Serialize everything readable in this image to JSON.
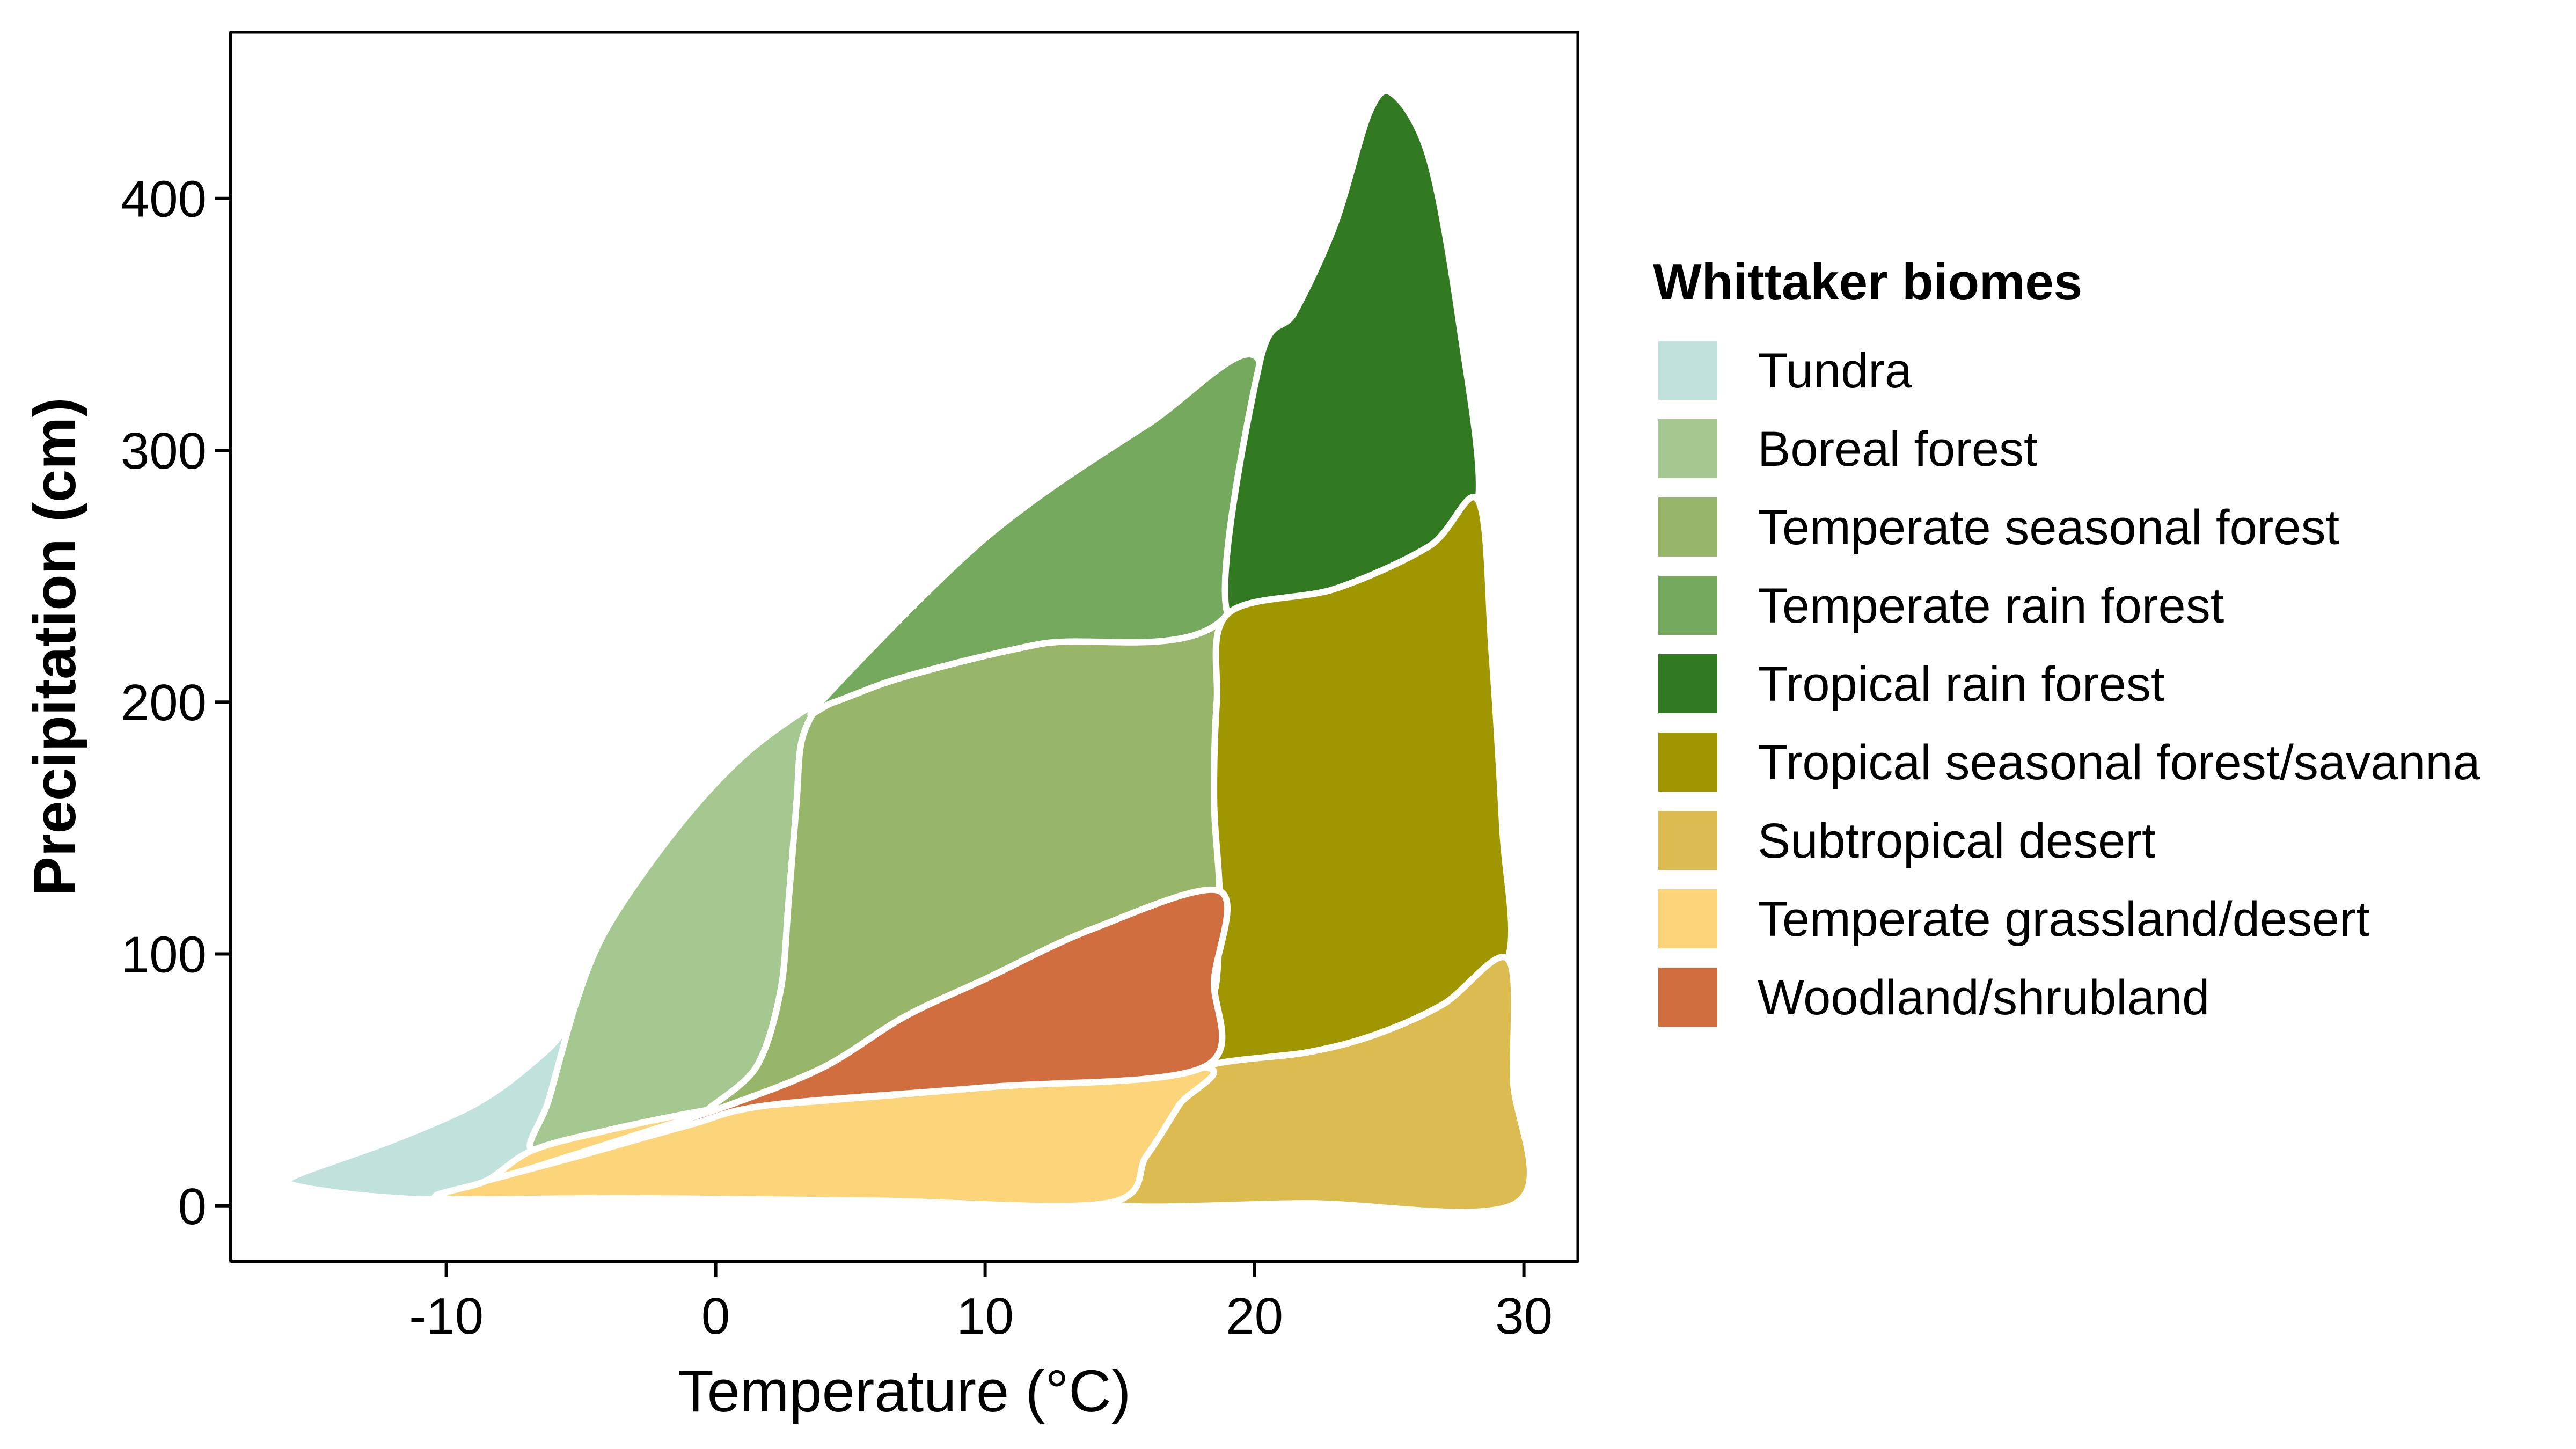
{
  "chart_data": {
    "type": "area",
    "title": "",
    "xlabel": "Temperature (°C)",
    "ylabel": "Precipitation (cm)",
    "xlim": [
      -18,
      32
    ],
    "ylim": [
      -22,
      466
    ],
    "x_ticks": [
      -10,
      0,
      10,
      20,
      30
    ],
    "x_tick_labels": [
      "-10",
      "0",
      "10",
      "20",
      "30"
    ],
    "y_ticks": [
      0,
      100,
      200,
      300,
      400
    ],
    "y_tick_labels": [
      "0",
      "100",
      "200",
      "300",
      "400"
    ],
    "grid": false,
    "legend": {
      "title": "Whittaker biomes",
      "position": "right"
    },
    "series": [
      {
        "name": "Tundra",
        "color": "#C1E1DD",
        "points": [
          [
            -15.6,
            12
          ],
          [
            -12,
            26
          ],
          [
            -9,
            40
          ],
          [
            -7,
            55
          ],
          [
            -5.5,
            72
          ],
          [
            -4.2,
            107
          ],
          [
            -5.2,
            80
          ],
          [
            -6.2,
            42
          ],
          [
            -6.8,
            22
          ],
          [
            -8.5,
            10
          ],
          [
            -10.2,
            3
          ],
          [
            -13,
            4
          ],
          [
            -15.6,
            8
          ]
        ]
      },
      {
        "name": "Boreal forest",
        "color": "#A5C790",
        "points": [
          [
            -4.2,
            107
          ],
          [
            -2.5,
            135
          ],
          [
            -0.5,
            162
          ],
          [
            1.5,
            183
          ],
          [
            3.9,
            200
          ],
          [
            3.2,
            185
          ],
          [
            3.0,
            160
          ],
          [
            2.7,
            120
          ],
          [
            2.4,
            85
          ],
          [
            1.5,
            55
          ],
          [
            -0.3,
            38
          ],
          [
            -4,
            30
          ],
          [
            -6.8,
            22
          ],
          [
            -6.2,
            42
          ],
          [
            -5.2,
            80
          ]
        ]
      },
      {
        "name": "Temperate seasonal forest",
        "color": "#97B669",
        "points": [
          [
            3.9,
            200
          ],
          [
            4.4,
            200
          ],
          [
            7,
            210
          ],
          [
            12,
            223
          ],
          [
            19,
            235
          ],
          [
            18.6,
            200
          ],
          [
            18.5,
            160
          ],
          [
            18.7,
            125
          ],
          [
            14,
            110
          ],
          [
            10,
            90
          ],
          [
            7,
            75
          ],
          [
            4,
            55
          ],
          [
            0.5,
            40
          ],
          [
            -0.3,
            38
          ],
          [
            1.5,
            55
          ],
          [
            2.4,
            85
          ],
          [
            2.7,
            120
          ],
          [
            3.0,
            160
          ],
          [
            3.2,
            185
          ]
        ]
      },
      {
        "name": "Temperate rain forest",
        "color": "#75A95E",
        "points": [
          [
            3.9,
            200
          ],
          [
            10,
            265
          ],
          [
            16,
            310
          ],
          [
            20.2,
            335
          ],
          [
            19,
            235
          ],
          [
            12,
            223
          ],
          [
            7,
            210
          ],
          [
            4.4,
            200
          ]
        ]
      },
      {
        "name": "Tropical rain forest",
        "color": "#317A22",
        "points": [
          [
            20.2,
            335
          ],
          [
            21.5,
            355
          ],
          [
            23,
            390
          ],
          [
            24.3,
            435
          ],
          [
            25.2,
            441
          ],
          [
            26.5,
            415
          ],
          [
            27.6,
            350
          ],
          [
            28.3,
            280
          ],
          [
            26.5,
            262
          ],
          [
            23,
            245
          ],
          [
            19,
            235
          ]
        ]
      },
      {
        "name": "Tropical seasonal forest/savanna",
        "color": "#A09700",
        "points": [
          [
            19,
            235
          ],
          [
            23,
            245
          ],
          [
            26.5,
            262
          ],
          [
            28.3,
            280
          ],
          [
            28.8,
            220
          ],
          [
            29.2,
            150
          ],
          [
            29.4,
            98
          ],
          [
            27,
            80
          ],
          [
            24.5,
            68
          ],
          [
            22,
            61
          ],
          [
            18.1,
            55
          ],
          [
            18.6,
            90
          ],
          [
            18.7,
            125
          ],
          [
            18.5,
            160
          ],
          [
            18.6,
            200
          ]
        ]
      },
      {
        "name": "Subtropical desert",
        "color": "#DCBB50",
        "points": [
          [
            18.1,
            55
          ],
          [
            22,
            61
          ],
          [
            24.5,
            68
          ],
          [
            27,
            80
          ],
          [
            29.4,
            98
          ],
          [
            29.6,
            50
          ],
          [
            29.7,
            1
          ],
          [
            22,
            1
          ],
          [
            14.5,
            1
          ],
          [
            16,
            20
          ],
          [
            17.2,
            40
          ]
        ]
      },
      {
        "name": "Temperate grassland/desert",
        "color": "#FCD57A",
        "points": [
          [
            -10.2,
            3
          ],
          [
            -8.5,
            10
          ],
          [
            -6.8,
            22
          ],
          [
            -4,
            30
          ],
          [
            -0.3,
            38
          ],
          [
            2,
            40
          ],
          [
            10,
            47
          ],
          [
            18.1,
            55
          ],
          [
            17.2,
            40
          ],
          [
            16,
            20
          ],
          [
            14.5,
            1
          ],
          [
            6,
            2
          ],
          [
            -3,
            3
          ]
        ]
      },
      {
        "name": "Woodland/shrubland",
        "color": "#D16E3F",
        "points": [
          [
            -8.5,
            10
          ],
          [
            -5,
            20
          ],
          [
            -1,
            32
          ],
          [
            2,
            40
          ],
          [
            10,
            47
          ],
          [
            18.1,
            55
          ],
          [
            18.5,
            90
          ],
          [
            18.7,
            125
          ],
          [
            14,
            110
          ],
          [
            10,
            90
          ],
          [
            7,
            75
          ],
          [
            4,
            55
          ],
          [
            0.5,
            40
          ],
          [
            -3,
            28
          ],
          [
            -6.8,
            15
          ]
        ]
      }
    ]
  }
}
